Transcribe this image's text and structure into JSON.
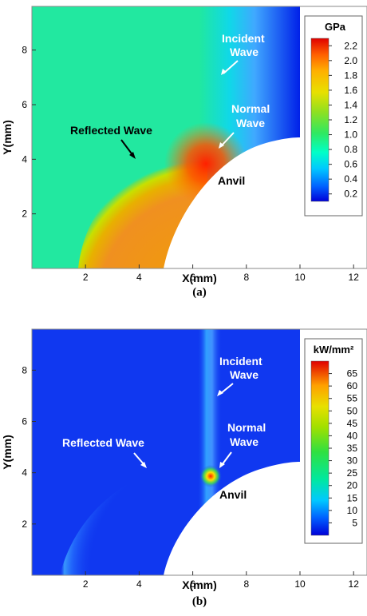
{
  "chart_data": [
    {
      "type": "heatmap",
      "panel_label": "(a)",
      "xlabel": "X(mm)",
      "ylabel": "Y(mm)",
      "xlim": [
        0,
        12.5
      ],
      "ylim": [
        0,
        9.6
      ],
      "xticks": [
        2,
        4,
        6,
        8,
        10,
        12
      ],
      "yticks": [
        2,
        4,
        6,
        8
      ],
      "colorbar": {
        "title": "GPa",
        "min": 0.1,
        "max": 2.3,
        "ticks": [
          0.2,
          0.4,
          0.6,
          0.8,
          1.0,
          1.2,
          1.4,
          1.6,
          1.8,
          2.0,
          2.2
        ],
        "tick_labels": [
          "0.2",
          "0.4",
          "0.6",
          "0.8",
          "1.0",
          "1.2",
          "1.4",
          "1.6",
          "1.8",
          "2.0",
          "2.2"
        ]
      },
      "annotations": [
        {
          "lines": [
            "Incident",
            "Wave"
          ],
          "color": "#ffffff",
          "x": 8.0,
          "y": 8.9
        },
        {
          "lines": [
            "Normal",
            "Wave"
          ],
          "color": "#ffffff",
          "x": 8.0,
          "y": 6.0
        },
        {
          "lines": [
            "Reflected Wave"
          ],
          "color": "#000000",
          "x": 3.9,
          "y": 5.3
        },
        {
          "lines": [
            "Anvil"
          ],
          "color": "#000000",
          "x": 7.5,
          "y": 3.3
        }
      ]
    },
    {
      "type": "heatmap",
      "panel_label": "(b)",
      "xlabel": "X(mm)",
      "ylabel": "Y(mm)",
      "xlim": [
        0,
        12.5
      ],
      "ylim": [
        0,
        9.6
      ],
      "xticks": [
        2,
        4,
        6,
        8,
        10,
        12
      ],
      "yticks": [
        2,
        4,
        6,
        8
      ],
      "colorbar": {
        "title": "kW/mm²",
        "min": 0,
        "max": 70,
        "ticks": [
          5,
          10,
          15,
          20,
          25,
          30,
          35,
          40,
          45,
          50,
          55,
          60,
          65
        ],
        "tick_labels": [
          "5",
          "10",
          "15",
          "20",
          "25",
          "30",
          "35",
          "40",
          "45",
          "50",
          "55",
          "60",
          "65"
        ]
      },
      "annotations": [
        {
          "lines": [
            "Incident",
            "Wave"
          ],
          "color": "#ffffff",
          "x": 8.0,
          "y": 8.9
        },
        {
          "lines": [
            "Normal",
            "Wave"
          ],
          "color": "#ffffff",
          "x": 8.0,
          "y": 6.0
        },
        {
          "lines": [
            "Reflected Wave"
          ],
          "color": "#ffffff",
          "x": 3.3,
          "y": 5.3
        },
        {
          "lines": [
            "Anvil"
          ],
          "color": "#000000",
          "x": 7.5,
          "y": 3.3
        }
      ]
    }
  ]
}
